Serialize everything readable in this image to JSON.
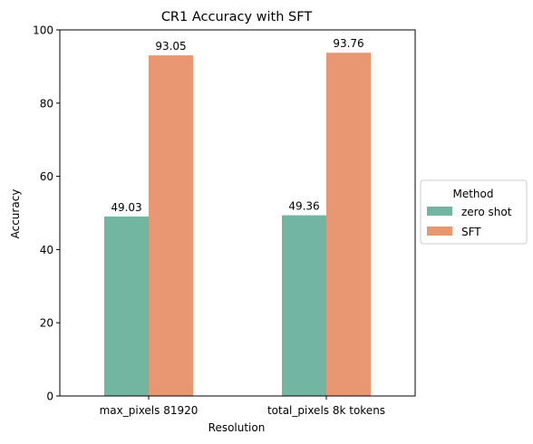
{
  "chart_data": {
    "type": "bar",
    "title": "CR1 Accuracy with SFT",
    "xlabel": "Resolution",
    "ylabel": "Accuracy",
    "ylim": [
      0,
      100
    ],
    "yticks": [
      0,
      20,
      40,
      60,
      80,
      100
    ],
    "categories": [
      "max_pixels 81920",
      "total_pixels 8k tokens"
    ],
    "series": [
      {
        "name": "zero shot",
        "values": [
          49.03,
          49.36
        ],
        "color": "#72b5a1"
      },
      {
        "name": "SFT",
        "values": [
          93.05,
          93.76
        ],
        "color": "#e99673"
      }
    ],
    "data_labels": [
      [
        "49.03",
        "49.36"
      ],
      [
        "93.05",
        "93.76"
      ]
    ],
    "legend": {
      "title": "Method",
      "placement": "center-right-outside"
    }
  }
}
